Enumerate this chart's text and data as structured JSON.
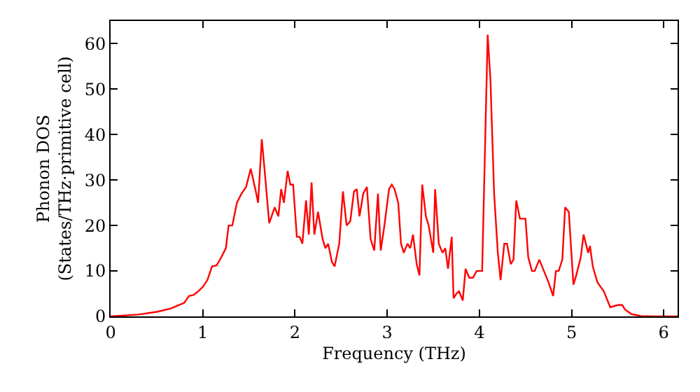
{
  "chart_data": {
    "type": "line",
    "xlabel": "Frequency (THz)",
    "ylabel": "Phonon DOS\n(States/THz·primitive cell)",
    "xlim": [
      0,
      6.15
    ],
    "ylim": [
      0,
      65
    ],
    "xticks": [
      0,
      1,
      2,
      3,
      4,
      5,
      6
    ],
    "yticks": [
      0,
      10,
      20,
      30,
      40,
      50,
      60
    ],
    "marker": "none",
    "line_style": "solid",
    "series": [
      {
        "color": "#ff0000",
        "x": [
          0,
          0.3,
          0.5,
          0.65,
          0.8,
          0.85,
          0.9,
          0.95,
          1.0,
          1.05,
          1.1,
          1.15,
          1.2,
          1.25,
          1.28,
          1.32,
          1.37,
          1.42,
          1.47,
          1.52,
          1.57,
          1.6,
          1.64,
          1.68,
          1.72,
          1.78,
          1.82,
          1.85,
          1.88,
          1.92,
          1.95,
          1.98,
          2.02,
          2.05,
          2.08,
          2.12,
          2.15,
          2.18,
          2.21,
          2.25,
          2.3,
          2.33,
          2.36,
          2.4,
          2.43,
          2.48,
          2.52,
          2.56,
          2.6,
          2.64,
          2.67,
          2.7,
          2.74,
          2.78,
          2.82,
          2.86,
          2.9,
          2.93,
          2.97,
          3.02,
          3.05,
          3.08,
          3.12,
          3.15,
          3.18,
          3.22,
          3.25,
          3.28,
          3.32,
          3.35,
          3.38,
          3.42,
          3.45,
          3.5,
          3.52,
          3.56,
          3.6,
          3.63,
          3.66,
          3.7,
          3.72,
          3.75,
          3.78,
          3.82,
          3.85,
          3.89,
          3.93,
          3.97,
          4.03,
          4.09,
          4.12,
          4.16,
          4.2,
          4.23,
          4.27,
          4.3,
          4.34,
          4.37,
          4.4,
          4.44,
          4.5,
          4.53,
          4.57,
          4.6,
          4.65,
          4.7,
          4.75,
          4.8,
          4.83,
          4.86,
          4.9,
          4.93,
          4.97,
          5.02,
          5.05,
          5.1,
          5.13,
          5.18,
          5.2,
          5.23,
          5.28,
          5.35,
          5.42,
          5.5,
          5.55,
          5.58,
          5.65,
          5.75,
          5.9,
          6.15
        ],
        "values": [
          0,
          0.4,
          1.0,
          1.7,
          3,
          4.5,
          4.7,
          5.5,
          6.5,
          8,
          11,
          11.2,
          13,
          15,
          20,
          20,
          25,
          27,
          28.5,
          32.5,
          28,
          25,
          39,
          30,
          20.5,
          24,
          22,
          28,
          25,
          32,
          29,
          29,
          17.5,
          17.5,
          16,
          25.5,
          18,
          29.5,
          18,
          23,
          17,
          15,
          16,
          12,
          11,
          16,
          27.5,
          20,
          21,
          27.5,
          28,
          22,
          27,
          28.5,
          17,
          14.5,
          27,
          14.5,
          20,
          28,
          29,
          28,
          25,
          16,
          14,
          16,
          15,
          18,
          11.5,
          9,
          29,
          22,
          20,
          14,
          28,
          16,
          14,
          15,
          10.5,
          17.5,
          4,
          5,
          5.5,
          3.5,
          10.5,
          8.5,
          8.5,
          10,
          10,
          62,
          52,
          27,
          14,
          8,
          16,
          16,
          11.5,
          12.5,
          25.5,
          21.5,
          21.5,
          13,
          10,
          10,
          12.5,
          10,
          7.5,
          4.5,
          10,
          10,
          12.5,
          24,
          23,
          7,
          9,
          13,
          18,
          14,
          15.5,
          11,
          7.5,
          5.5,
          2,
          2.5,
          2.5,
          1.5,
          0.5,
          0.1,
          0,
          0
        ]
      }
    ]
  }
}
